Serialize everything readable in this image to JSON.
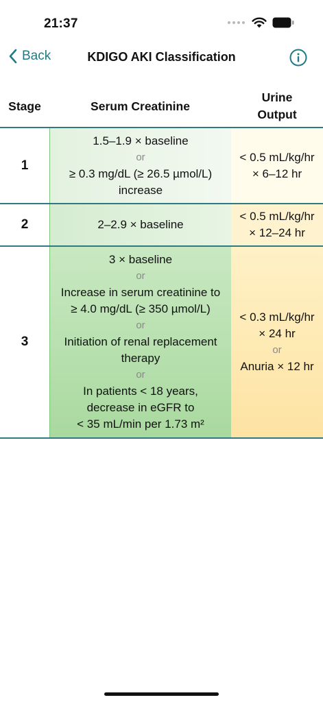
{
  "status_bar": {
    "time": "21:37"
  },
  "nav": {
    "back_label": "Back",
    "title": "KDIGO AKI Classification"
  },
  "table": {
    "headers": {
      "stage": "Stage",
      "serum": "Serum Creatinine",
      "urine_line1": "Urine",
      "urine_line2": "Output"
    },
    "rows": [
      {
        "stage": "1",
        "serum": [
          "1.5–1.9 × baseline",
          "or",
          "≥ 0.3 mg/dL (≥ 26.5 µmol/L)",
          "increase"
        ],
        "urine": [
          "< 0.5 mL/kg/hr",
          "× 6–12 hr"
        ]
      },
      {
        "stage": "2",
        "serum": [
          "2–2.9 × baseline"
        ],
        "urine": [
          "< 0.5 mL/kg/hr",
          "× 12–24 hr"
        ]
      },
      {
        "stage": "3",
        "serum": [
          "3 × baseline",
          "or",
          "Increase in serum creatinine to",
          "≥ 4.0 mg/dL (≥ 350 µmol/L)",
          "or",
          "Initiation of renal replacement",
          "therapy",
          "or",
          "In patients < 18 years,",
          "decrease in eGFR to",
          "< 35 mL/min per 1.73 m²"
        ],
        "urine": [
          "< 0.3 mL/kg/hr",
          "× 24 hr",
          "or",
          "Anuria × 12 hr"
        ]
      }
    ]
  },
  "colors": {
    "accent": "#1f7a85",
    "divider": "#2f7a7f"
  }
}
